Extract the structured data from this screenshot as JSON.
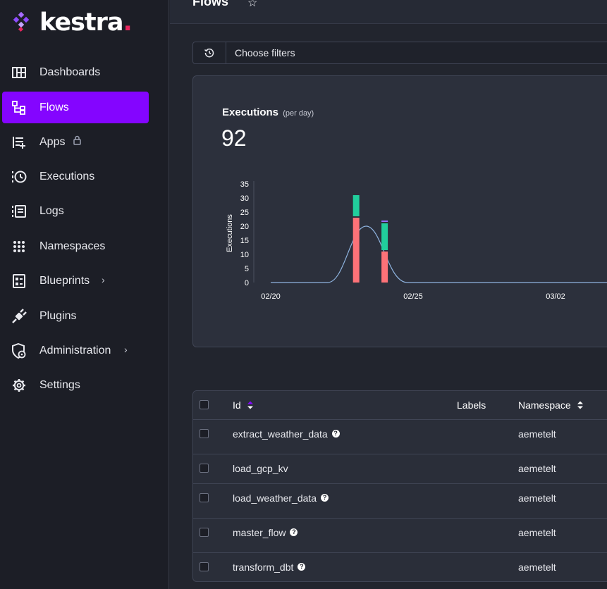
{
  "app": {
    "logo_text": "kestra",
    "logo_dot": "."
  },
  "sidebar": {
    "items": [
      {
        "label": "Dashboards",
        "icon": "dashboard-icon"
      },
      {
        "label": "Flows",
        "icon": "flows-icon",
        "active": true
      },
      {
        "label": "Apps",
        "icon": "apps-icon",
        "locked": true
      },
      {
        "label": "Executions",
        "icon": "executions-icon"
      },
      {
        "label": "Logs",
        "icon": "logs-icon"
      },
      {
        "label": "Namespaces",
        "icon": "namespaces-icon"
      },
      {
        "label": "Blueprints",
        "icon": "blueprints-icon",
        "expandable": true
      },
      {
        "label": "Plugins",
        "icon": "plugins-icon"
      },
      {
        "label": "Administration",
        "icon": "administration-icon",
        "expandable": true
      },
      {
        "label": "Settings",
        "icon": "settings-icon"
      }
    ],
    "chevron": "›"
  },
  "header": {
    "title": "Flows",
    "star": "☆"
  },
  "filters": {
    "placeholder": "Choose filters"
  },
  "executions_card": {
    "title": "Executions",
    "subtitle": "(per day)",
    "total": "92"
  },
  "chart_data": {
    "type": "bar",
    "ylabel": "Executions",
    "ylim": [
      0,
      35
    ],
    "yticks": [
      "35",
      "30",
      "25",
      "20",
      "15",
      "10",
      "5",
      "0"
    ],
    "xticks": [
      "02/20",
      "02/25",
      "03/02"
    ],
    "categories": [
      "02/23",
      "02/24"
    ],
    "series": [
      {
        "values": [
          23,
          11
        ],
        "color": "#fd7278"
      },
      {
        "values": [
          8,
          10
        ],
        "color": "#21ce9c"
      },
      {
        "values": [
          0,
          1
        ],
        "color": "#9470ff"
      }
    ],
    "trend_line": {
      "color": "#8fb4e0",
      "peak": 20
    },
    "colors": {
      "failed": "#fd7278",
      "success": "#21ce9c",
      "other": "#9470ff"
    }
  },
  "table": {
    "headers": {
      "id": "Id",
      "labels": "Labels",
      "namespace": "Namespace"
    },
    "rows": [
      {
        "id": "extract_weather_data",
        "namespace": "aemetelt",
        "help": true
      },
      {
        "id": "load_gcp_kv",
        "namespace": "aemetelt",
        "help": false
      },
      {
        "id": "load_weather_data",
        "namespace": "aemetelt",
        "help": true
      },
      {
        "id": "master_flow",
        "namespace": "aemetelt",
        "help": true
      },
      {
        "id": "transform_dbt",
        "namespace": "aemetelt",
        "help": true
      }
    ],
    "help_glyph": "?"
  },
  "colors": {
    "accent": "#8405ff",
    "brand_dot": "#e8255e"
  }
}
